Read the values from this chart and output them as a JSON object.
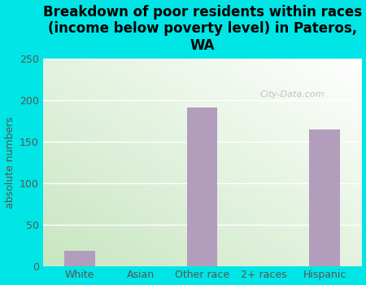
{
  "categories": [
    "White",
    "Asian",
    "Other race",
    "2+ races",
    "Hispanic"
  ],
  "values": [
    18,
    0,
    191,
    0,
    165
  ],
  "bar_color": "#b39dbd",
  "title": "Breakdown of poor residents within races\n(income below poverty level) in Pateros,\nWA",
  "ylabel": "absolute numbers",
  "ylim": [
    0,
    250
  ],
  "yticks": [
    0,
    50,
    100,
    150,
    200,
    250
  ],
  "background_color": "#00e5e5",
  "plot_bg_top_right": "#ffffff",
  "plot_bg_bottom_left": "#c8e6c0",
  "title_fontsize": 12,
  "axis_label_fontsize": 9,
  "tick_fontsize": 9,
  "watermark": "City-Data.com"
}
